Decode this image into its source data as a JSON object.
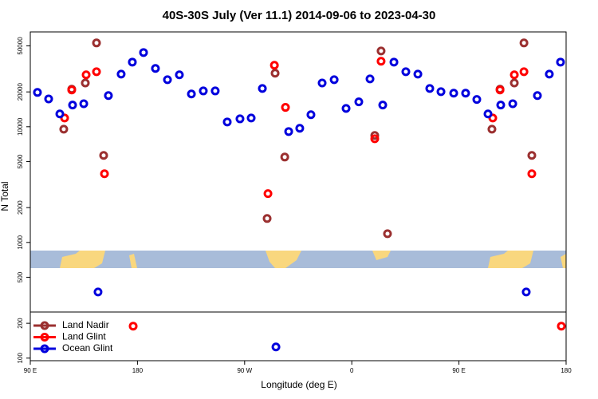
{
  "chart_data": {
    "type": "scatter",
    "title": "40S-30S July (Ver 11.1)   2014-09-06 to 2023-04-30",
    "x_label": "Longitude (deg E)",
    "y_label": "N Total",
    "log_y": true,
    "legend": "lower left",
    "xlim": [
      90,
      540
    ],
    "xticks": [
      {
        "value": 90,
        "label": "90 E"
      },
      {
        "value": 180,
        "label": "180"
      },
      {
        "value": 270,
        "label": "90 W"
      },
      {
        "value": 360,
        "label": "0"
      },
      {
        "value": 450,
        "label": "90 E"
      },
      {
        "value": 540,
        "label": "180"
      }
    ],
    "ylim": [
      95,
      66000
    ],
    "yticks": [
      100,
      200,
      500,
      1000,
      2000,
      5000,
      10000,
      20000,
      50000
    ],
    "series": [
      {
        "name": "Land Nadir",
        "color": "#9b3030",
        "x": [
          118.1,
          124.8,
          136.2,
          145.6,
          151.6,
          288.9,
          295.6,
          303.7,
          379.3,
          384.6,
          390.0,
          477.7,
          484.5,
          496.5,
          504.6,
          511.2
        ],
        "values": [
          9530,
          21100,
          23900,
          53000,
          5650,
          1610,
          29000,
          5470,
          8400,
          45200,
          1190,
          9530,
          21100,
          23900,
          53000,
          5650
        ]
      },
      {
        "name": "Land Glint",
        "color": "#ff0000",
        "x": [
          118.8,
          124.8,
          136.9,
          145.6,
          152.3,
          176.4,
          289.6,
          295.0,
          304.3,
          379.3,
          384.6,
          478.4,
          484.5,
          496.5,
          504.6,
          511.2,
          536.0
        ],
        "values": [
          11900,
          20800,
          28100,
          29900,
          3920,
          189,
          2640,
          34000,
          14700,
          7880,
          36800,
          11900,
          20800,
          28100,
          29900,
          3920,
          189
        ]
      },
      {
        "name": "Ocean Glint",
        "color": "#0000dd",
        "x": [
          96.0,
          105.4,
          114.8,
          125.5,
          134.9,
          146.9,
          155.6,
          166.3,
          175.7,
          185.1,
          195.1,
          205.2,
          215.2,
          225.3,
          235.3,
          245.3,
          255.4,
          266.1,
          275.5,
          284.9,
          296.3,
          307.0,
          316.3,
          325.7,
          335.1,
          345.2,
          355.2,
          365.9,
          375.3,
          386.0,
          395.4,
          405.4,
          415.5,
          425.5,
          434.9,
          445.6,
          455.6,
          465.0,
          474.4,
          485.1,
          495.2,
          506.5,
          515.9,
          525.9,
          535.3
        ],
        "values": [
          19800,
          17400,
          12900,
          15400,
          15800,
          373,
          18600,
          28500,
          36200,
          43800,
          31900,
          25500,
          28100,
          19200,
          20400,
          20400,
          11000,
          11700,
          11900,
          21400,
          125,
          9090,
          9700,
          12700,
          23900,
          25500,
          14400,
          16400,
          25900,
          15400,
          36200,
          29900,
          28500,
          21400,
          20100,
          19500,
          19500,
          17200,
          12900,
          15400,
          15800,
          373,
          18600,
          28500,
          36200
        ]
      }
    ]
  }
}
